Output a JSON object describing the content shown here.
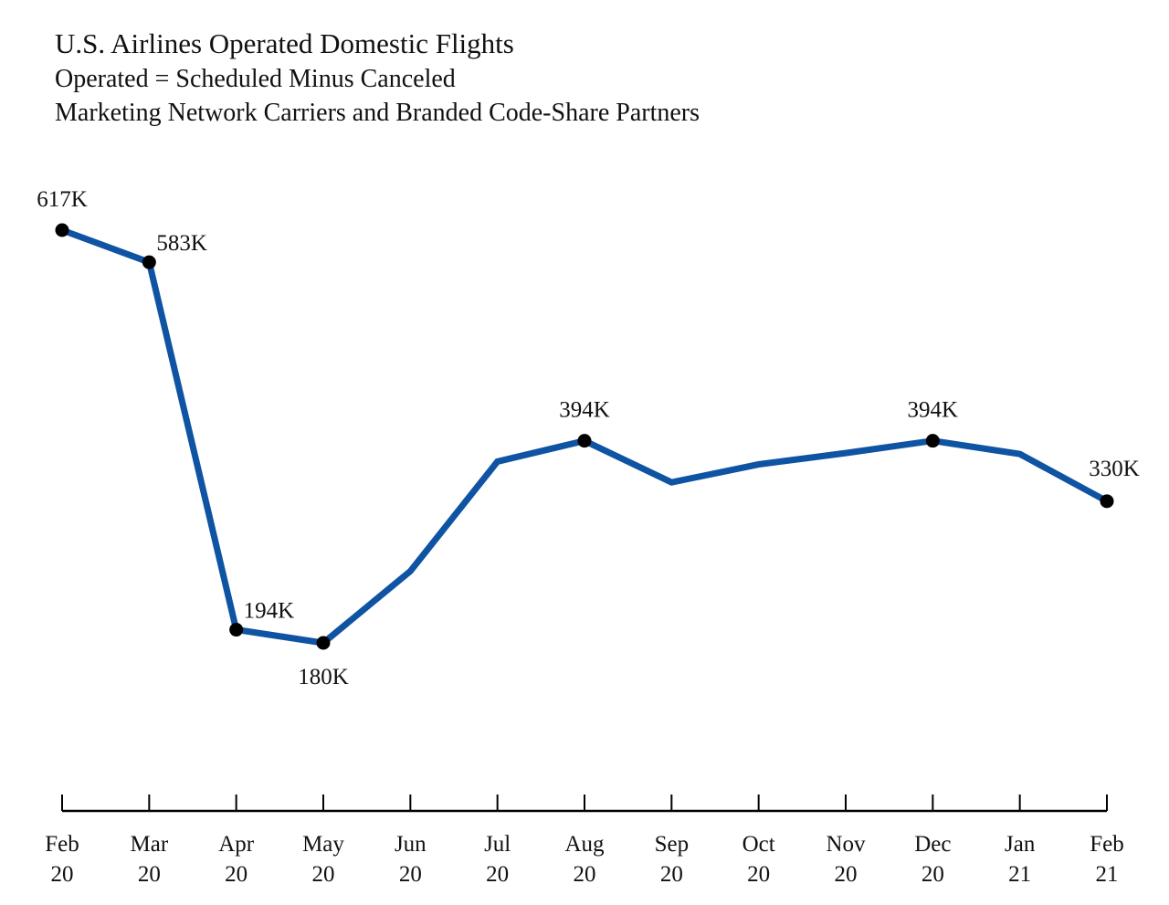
{
  "title": "U.S. Airlines Operated Domestic Flights",
  "subtitles": [
    "Operated = Scheduled Minus Canceled",
    "Marketing Network Carriers and Branded Code-Share Partners"
  ],
  "colors": {
    "line": "#0f53a3",
    "marker": "#000000",
    "axis": "#000000"
  },
  "chart_data": {
    "type": "line",
    "title": "U.S. Airlines Operated Domestic Flights",
    "subtitle": "Operated = Scheduled Minus Canceled; Marketing Network Carriers and Branded Code-Share Partners",
    "xlabel": "",
    "ylabel": "",
    "grid": false,
    "legend": "none",
    "ylim": [
      0,
      650
    ],
    "categories": [
      {
        "month": "Feb",
        "year": "20"
      },
      {
        "month": "Mar",
        "year": "20"
      },
      {
        "month": "Apr",
        "year": "20"
      },
      {
        "month": "May",
        "year": "20"
      },
      {
        "month": "Jun",
        "year": "20"
      },
      {
        "month": "Jul",
        "year": "20"
      },
      {
        "month": "Aug",
        "year": "20"
      },
      {
        "month": "Sep",
        "year": "20"
      },
      {
        "month": "Oct",
        "year": "20"
      },
      {
        "month": "Nov",
        "year": "20"
      },
      {
        "month": "Dec",
        "year": "20"
      },
      {
        "month": "Jan",
        "year": "21"
      },
      {
        "month": "Feb",
        "year": "21"
      }
    ],
    "series": [
      {
        "values": [
          617,
          583,
          194,
          180,
          256,
          372,
          394,
          350,
          369,
          381,
          394,
          380,
          330
        ],
        "units": "thousands of flights"
      }
    ],
    "data_labels": [
      {
        "index": 0,
        "text": "617K",
        "pos": "above"
      },
      {
        "index": 1,
        "text": "583K",
        "pos": "right"
      },
      {
        "index": 2,
        "text": "194K",
        "pos": "right"
      },
      {
        "index": 3,
        "text": "180K",
        "pos": "below"
      },
      {
        "index": 6,
        "text": "394K",
        "pos": "above"
      },
      {
        "index": 10,
        "text": "394K",
        "pos": "above"
      },
      {
        "index": 12,
        "text": "330K",
        "pos": "above"
      }
    ]
  }
}
